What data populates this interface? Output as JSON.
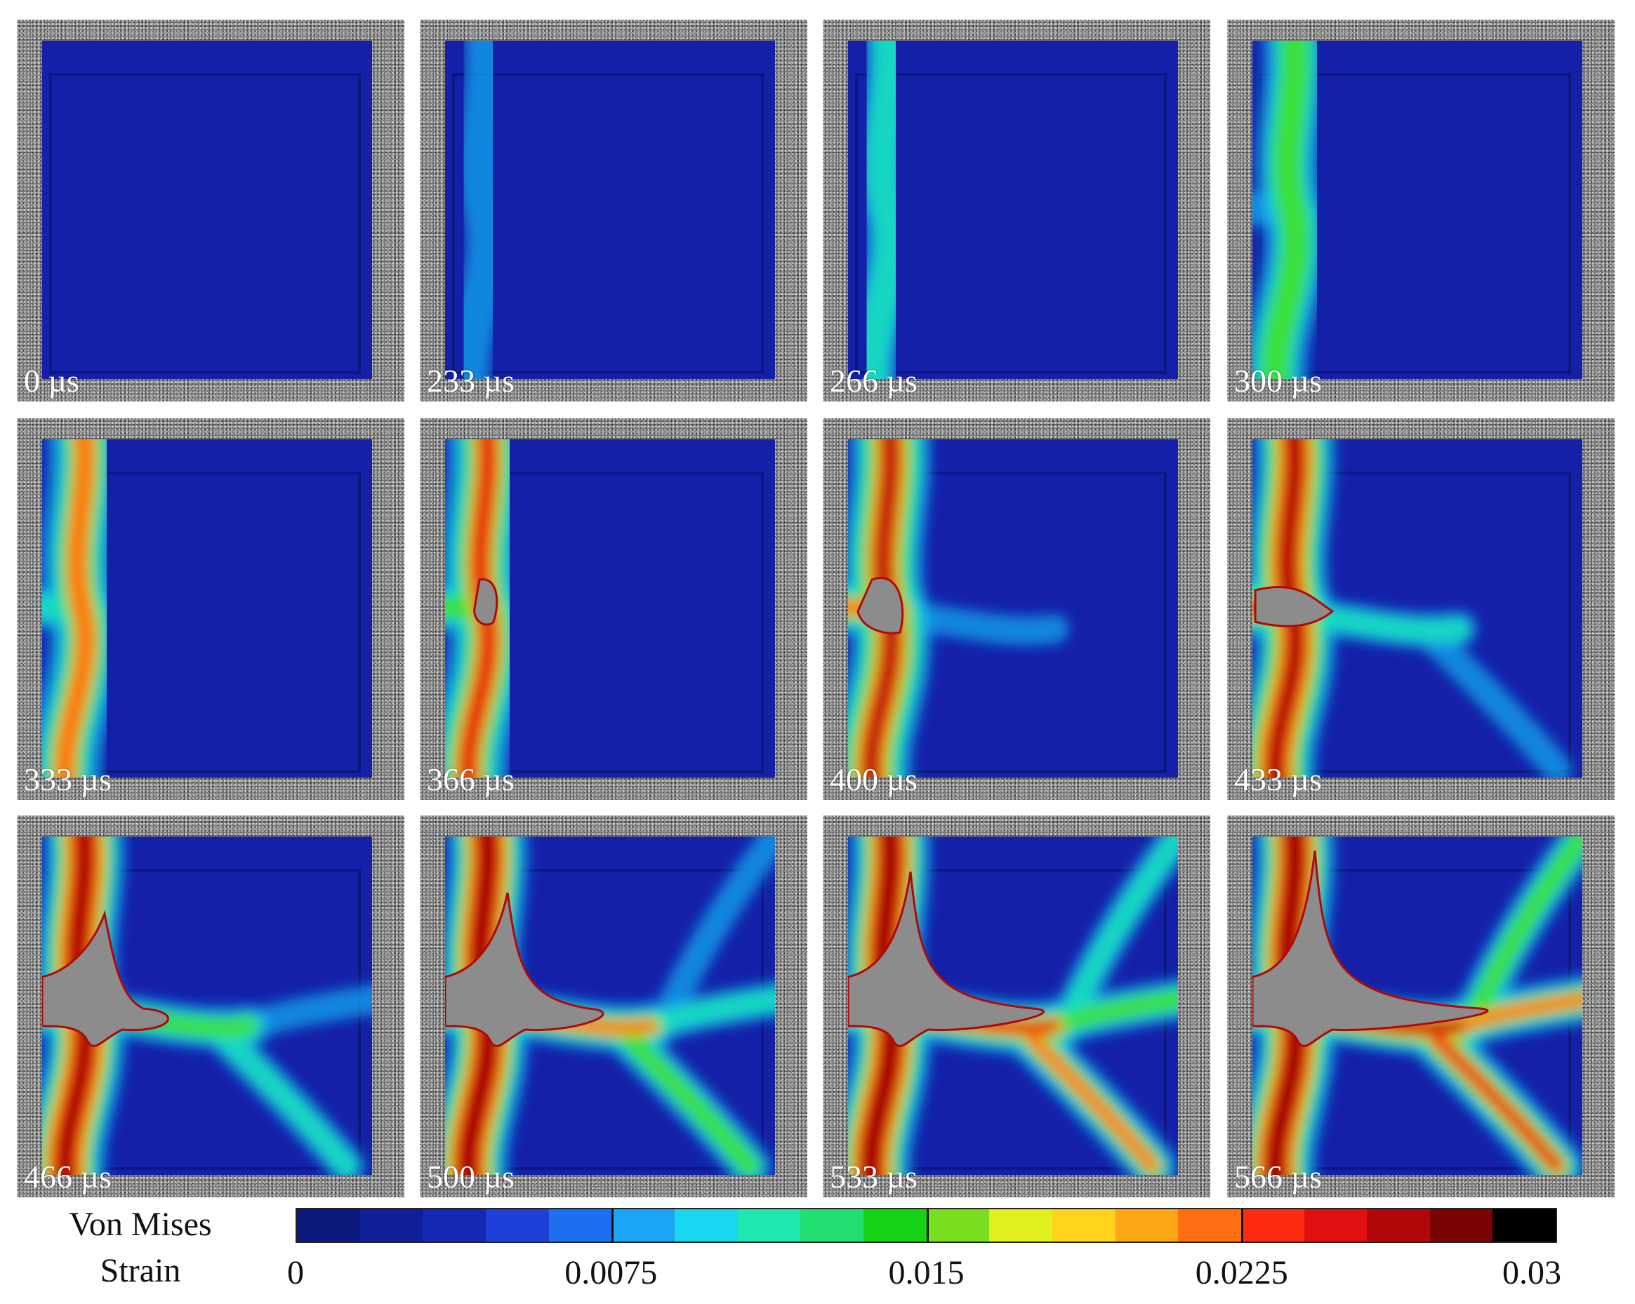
{
  "frames": [
    {
      "time": "0 µs",
      "stage": 0
    },
    {
      "time": "233 µs",
      "stage": 1
    },
    {
      "time": "266 µs",
      "stage": 2
    },
    {
      "time": "300 µs",
      "stage": 3
    },
    {
      "time": "333 µs",
      "stage": 4
    },
    {
      "time": "366 µs",
      "stage": 5
    },
    {
      "time": "400 µs",
      "stage": 6
    },
    {
      "time": "433 µs",
      "stage": 7
    },
    {
      "time": "466 µs",
      "stage": 8
    },
    {
      "time": "500 µs",
      "stage": 9
    },
    {
      "time": "533 µs",
      "stage": 10
    },
    {
      "time": "566 µs",
      "stage": 11
    }
  ],
  "legend": {
    "title_line1": "Von Mises",
    "title_line2": "Strain",
    "ticks": [
      "0",
      "0.0075",
      "0.015",
      "0.0225",
      "0.03"
    ],
    "range": [
      0,
      0.03
    ],
    "colors": [
      "#0b1a7a",
      "#0f1f96",
      "#1428b4",
      "#1e3fd8",
      "#1e6ff0",
      "#1aa6f4",
      "#18d8f0",
      "#1ee8b0",
      "#22e070",
      "#16d216",
      "#7ade20",
      "#dff01c",
      "#ffd21c",
      "#ffa614",
      "#ff6e10",
      "#ff2a10",
      "#e01010",
      "#b00808",
      "#7a0404",
      "#000000"
    ]
  },
  "colors": {
    "speckle_frame": "#8a8a8a",
    "field_background": "#1420a8",
    "failed_region": "#8c8c8c"
  }
}
